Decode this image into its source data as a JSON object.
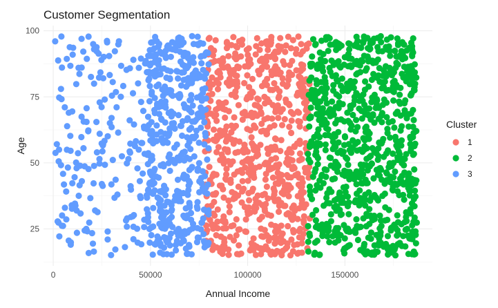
{
  "chart_data": {
    "type": "scatter",
    "title": "Customer Segmentation",
    "xlabel": "Annual Income",
    "ylabel": "Age",
    "xlim": [
      -5000,
      195000
    ],
    "ylim": [
      11,
      102
    ],
    "x_ticks": [
      0,
      50000,
      100000,
      150000
    ],
    "x_tick_labels": [
      "0",
      "50000",
      "100000",
      "150000"
    ],
    "y_ticks": [
      25,
      50,
      75,
      100
    ],
    "y_tick_labels": [
      "25",
      "50",
      "75",
      "100"
    ],
    "grid": true,
    "legend": {
      "title": "Cluster",
      "position": "right"
    },
    "series": [
      {
        "name": "1",
        "color": "#F8766D",
        "x_range": [
          78000,
          132000
        ],
        "y_range": [
          15,
          98
        ],
        "n": 700,
        "points": [
          [
            80000,
            97
          ],
          [
            95000,
            90
          ],
          [
            110000,
            96
          ],
          [
            125000,
            93
          ],
          [
            85000,
            80
          ],
          [
            100000,
            75
          ],
          [
            118000,
            82
          ],
          [
            130000,
            70
          ],
          [
            90000,
            60
          ],
          [
            105000,
            55
          ],
          [
            120000,
            50
          ],
          [
            82000,
            45
          ],
          [
            97000,
            35
          ],
          [
            112000,
            30
          ],
          [
            127000,
            25
          ],
          [
            88000,
            20
          ],
          [
            103000,
            17
          ],
          [
            122000,
            15
          ]
        ]
      },
      {
        "name": "2",
        "color": "#00BA38",
        "x_range": [
          131000,
          187000
        ],
        "y_range": [
          15,
          98
        ],
        "n": 800,
        "points": [
          [
            135000,
            95
          ],
          [
            150000,
            90
          ],
          [
            165000,
            97
          ],
          [
            180000,
            92
          ],
          [
            140000,
            80
          ],
          [
            155000,
            75
          ],
          [
            170000,
            85
          ],
          [
            185000,
            70
          ],
          [
            145000,
            60
          ],
          [
            160000,
            55
          ],
          [
            175000,
            50
          ],
          [
            138000,
            45
          ],
          [
            152000,
            35
          ],
          [
            168000,
            30
          ],
          [
            182000,
            25
          ],
          [
            142000,
            20
          ],
          [
            158000,
            17
          ],
          [
            176000,
            15
          ]
        ]
      },
      {
        "name": "3",
        "color": "#619CFF",
        "x_range": [
          1000,
          80000
        ],
        "y_range": [
          15,
          98
        ],
        "n": 620,
        "points": [
          [
            1000,
            96
          ],
          [
            10000,
            91
          ],
          [
            21000,
            93
          ],
          [
            13000,
            86
          ],
          [
            4000,
            78
          ],
          [
            21000,
            80
          ],
          [
            8000,
            69
          ],
          [
            18000,
            62
          ],
          [
            30000,
            67
          ],
          [
            44000,
            55
          ],
          [
            3000,
            55
          ],
          [
            12000,
            48
          ],
          [
            25000,
            42
          ],
          [
            33000,
            38
          ],
          [
            6000,
            33
          ],
          [
            17000,
            25
          ],
          [
            28000,
            21
          ],
          [
            9000,
            19
          ],
          [
            38000,
            29
          ],
          [
            50000,
            46
          ],
          [
            55000,
            92
          ],
          [
            60000,
            82
          ],
          [
            66000,
            97
          ],
          [
            72000,
            90
          ],
          [
            52000,
            70
          ],
          [
            62000,
            65
          ],
          [
            70000,
            58
          ],
          [
            76000,
            75
          ],
          [
            58000,
            40
          ],
          [
            67000,
            30
          ],
          [
            74000,
            20
          ],
          [
            55000,
            16
          ],
          [
            64000,
            52
          ],
          [
            78000,
            45
          ]
        ]
      }
    ]
  }
}
